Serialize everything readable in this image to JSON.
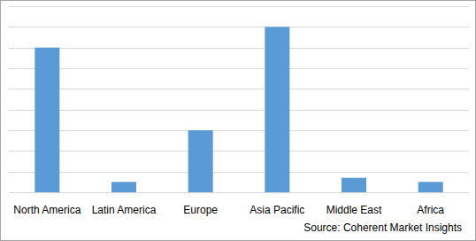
{
  "chart_data": {
    "type": "bar",
    "categories": [
      "North America",
      "Latin America",
      "Europe",
      "Asia Pacific",
      "Middle East",
      "Africa"
    ],
    "values": [
      7.0,
      0.5,
      3.0,
      8.0,
      0.7,
      0.5
    ],
    "color": "#5b9bd5",
    "ylim": [
      0,
      9
    ],
    "yticks": [
      0,
      1,
      2,
      3,
      4,
      5,
      6,
      7,
      8,
      9
    ],
    "grid": true,
    "tick_labels": "x",
    "annotations": [
      "Source: Coherent Market Insights"
    ]
  }
}
